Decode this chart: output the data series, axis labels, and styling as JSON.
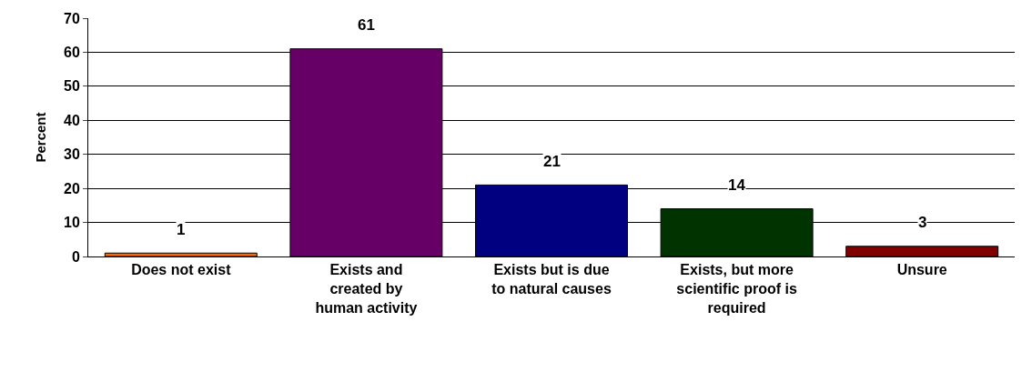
{
  "chart_data": {
    "type": "bar",
    "ylabel": "Percent",
    "categories": [
      "Does not exist",
      "Exists and\ncreated by\nhuman activity",
      "Exists but is due\nto natural causes",
      "Exists, but more\nscientific proof is\nrequired",
      "Unsure"
    ],
    "values": [
      1,
      61,
      21,
      14,
      3
    ],
    "colors": [
      "#ff6600",
      "#660066",
      "#000080",
      "#003300",
      "#800000"
    ],
    "ylim": [
      0,
      70
    ],
    "yticks": [
      0,
      10,
      20,
      30,
      40,
      50,
      60,
      70
    ],
    "grid": "y",
    "legend": false,
    "data_labels": true
  }
}
